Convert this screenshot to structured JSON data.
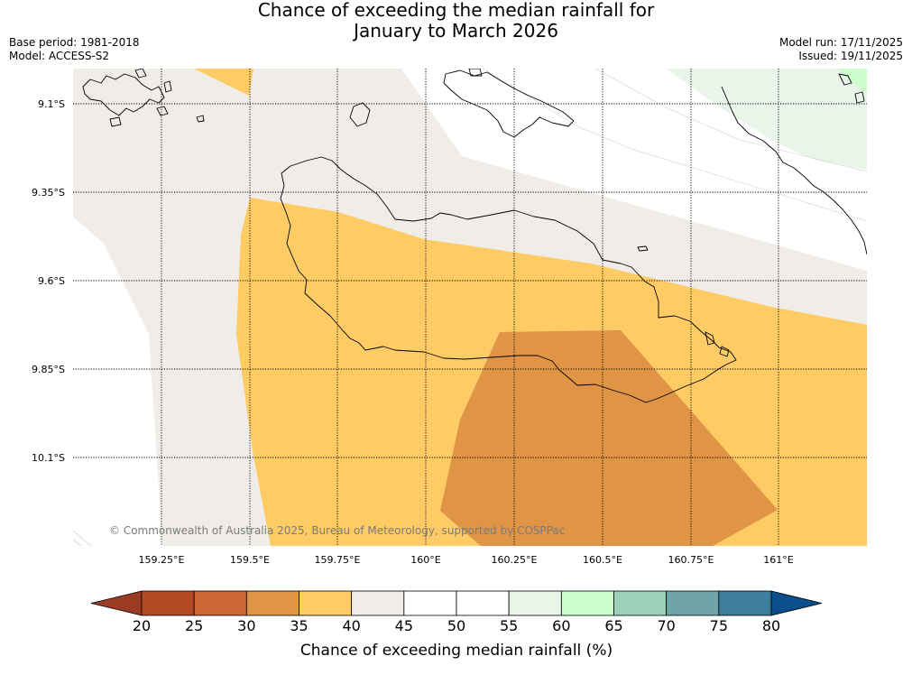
{
  "title": {
    "line1": "Chance of exceeding the median rainfall for",
    "line2": "January to March 2026"
  },
  "meta": {
    "base_period": "Base period: 1981-2018",
    "model": "Model: ACCESS-S2",
    "model_run": "Model run: 17/11/2025",
    "issued": "Issued: 19/11/2025"
  },
  "map": {
    "copyright": "© Commonwealth of Australia 2025, Bureau of Meteorology, supported by COSPPac",
    "lat_labels": [
      "9.1°S",
      "9.35°S",
      "9.6°S",
      "9.85°S",
      "10.1°S"
    ],
    "lon_labels": [
      "159.25°E",
      "159.5°E",
      "159.75°E",
      "160°E",
      "160.25°E",
      "160.5°E",
      "160.75°E",
      "161°E"
    ]
  },
  "colorbar": {
    "label": "Chance of exceeding median rainfall (%)",
    "ticks": [
      "20",
      "25",
      "30",
      "35",
      "40",
      "45",
      "50",
      "55",
      "60",
      "65",
      "70",
      "75",
      "80"
    ],
    "colors": [
      "#b34a26",
      "#cc6633",
      "#e09445",
      "#fecb65",
      "#f0ede8",
      "#ffffff",
      "#ffffff",
      "#e9f5e9",
      "#ccffcc",
      "#9dd0b9",
      "#6fa5a7",
      "#3f7d9c"
    ],
    "under_color": "#9c3b23",
    "over_color": "#0b4e8c"
  }
}
